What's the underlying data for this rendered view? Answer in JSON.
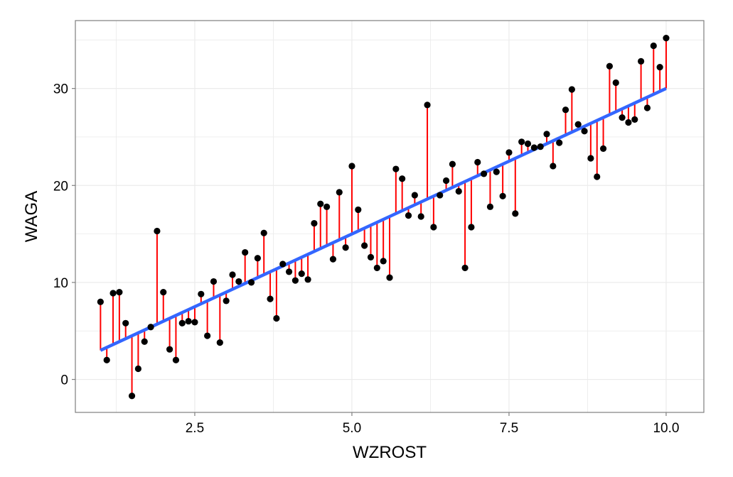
{
  "chart_data": {
    "type": "scatter",
    "xlabel": "WZROST",
    "ylabel": "WAGA",
    "xlim": [
      0.6,
      10.6
    ],
    "ylim": [
      -3.4,
      37.0
    ],
    "x_ticks": [
      2.5,
      5.0,
      7.5,
      10.0
    ],
    "x_tick_labels": [
      "2.5",
      "5.0",
      "7.5",
      "10.0"
    ],
    "y_ticks": [
      0,
      10,
      20,
      30
    ],
    "y_tick_labels": [
      "0",
      "10",
      "20",
      "30"
    ],
    "grid": true,
    "fit_line": {
      "x": [
        1.0,
        10.0
      ],
      "y": [
        3.0,
        30.0
      ]
    },
    "points": [
      {
        "x": 1.0,
        "y": 8.0
      },
      {
        "x": 1.1,
        "y": 2.0
      },
      {
        "x": 1.2,
        "y": 8.9
      },
      {
        "x": 1.3,
        "y": 9.0
      },
      {
        "x": 1.4,
        "y": 5.8
      },
      {
        "x": 1.5,
        "y": -1.7
      },
      {
        "x": 1.6,
        "y": 1.1
      },
      {
        "x": 1.7,
        "y": 3.9
      },
      {
        "x": 1.8,
        "y": 5.4
      },
      {
        "x": 1.9,
        "y": 15.3
      },
      {
        "x": 2.0,
        "y": 9.0
      },
      {
        "x": 2.1,
        "y": 3.1
      },
      {
        "x": 2.2,
        "y": 2.0
      },
      {
        "x": 2.3,
        "y": 5.8
      },
      {
        "x": 2.4,
        "y": 6.0
      },
      {
        "x": 2.5,
        "y": 5.9
      },
      {
        "x": 2.6,
        "y": 8.8
      },
      {
        "x": 2.7,
        "y": 4.5
      },
      {
        "x": 2.8,
        "y": 10.1
      },
      {
        "x": 2.9,
        "y": 3.8
      },
      {
        "x": 3.0,
        "y": 8.1
      },
      {
        "x": 3.1,
        "y": 10.8
      },
      {
        "x": 3.2,
        "y": 10.1
      },
      {
        "x": 3.3,
        "y": 13.1
      },
      {
        "x": 3.4,
        "y": 10.0
      },
      {
        "x": 3.5,
        "y": 12.5
      },
      {
        "x": 3.6,
        "y": 15.1
      },
      {
        "x": 3.7,
        "y": 8.3
      },
      {
        "x": 3.8,
        "y": 6.3
      },
      {
        "x": 3.9,
        "y": 11.9
      },
      {
        "x": 4.0,
        "y": 11.1
      },
      {
        "x": 4.1,
        "y": 10.2
      },
      {
        "x": 4.2,
        "y": 10.9
      },
      {
        "x": 4.3,
        "y": 10.3
      },
      {
        "x": 4.4,
        "y": 16.1
      },
      {
        "x": 4.5,
        "y": 18.1
      },
      {
        "x": 4.6,
        "y": 17.8
      },
      {
        "x": 4.7,
        "y": 12.4
      },
      {
        "x": 4.8,
        "y": 19.3
      },
      {
        "x": 4.9,
        "y": 13.6
      },
      {
        "x": 5.0,
        "y": 22.0
      },
      {
        "x": 5.1,
        "y": 17.5
      },
      {
        "x": 5.2,
        "y": 13.8
      },
      {
        "x": 5.3,
        "y": 12.6
      },
      {
        "x": 5.4,
        "y": 11.5
      },
      {
        "x": 5.5,
        "y": 12.2
      },
      {
        "x": 5.6,
        "y": 10.5
      },
      {
        "x": 5.7,
        "y": 21.7
      },
      {
        "x": 5.8,
        "y": 20.7
      },
      {
        "x": 5.9,
        "y": 16.9
      },
      {
        "x": 6.0,
        "y": 19.0
      },
      {
        "x": 6.1,
        "y": 16.8
      },
      {
        "x": 6.2,
        "y": 28.3
      },
      {
        "x": 6.3,
        "y": 15.7
      },
      {
        "x": 6.4,
        "y": 19.0
      },
      {
        "x": 6.5,
        "y": 20.5
      },
      {
        "x": 6.6,
        "y": 22.2
      },
      {
        "x": 6.7,
        "y": 19.4
      },
      {
        "x": 6.8,
        "y": 11.5
      },
      {
        "x": 6.9,
        "y": 15.7
      },
      {
        "x": 7.0,
        "y": 22.4
      },
      {
        "x": 7.1,
        "y": 21.2
      },
      {
        "x": 7.2,
        "y": 17.8
      },
      {
        "x": 7.3,
        "y": 21.4
      },
      {
        "x": 7.4,
        "y": 18.9
      },
      {
        "x": 7.5,
        "y": 23.4
      },
      {
        "x": 7.6,
        "y": 17.1
      },
      {
        "x": 7.7,
        "y": 24.5
      },
      {
        "x": 7.8,
        "y": 24.3
      },
      {
        "x": 7.9,
        "y": 23.9
      },
      {
        "x": 8.0,
        "y": 24.0
      },
      {
        "x": 8.1,
        "y": 25.3
      },
      {
        "x": 8.2,
        "y": 22.0
      },
      {
        "x": 8.3,
        "y": 24.4
      },
      {
        "x": 8.4,
        "y": 27.8
      },
      {
        "x": 8.5,
        "y": 29.9
      },
      {
        "x": 8.6,
        "y": 26.3
      },
      {
        "x": 8.7,
        "y": 25.6
      },
      {
        "x": 8.8,
        "y": 22.8
      },
      {
        "x": 8.9,
        "y": 20.9
      },
      {
        "x": 9.0,
        "y": 23.8
      },
      {
        "x": 9.1,
        "y": 32.3
      },
      {
        "x": 9.2,
        "y": 30.6
      },
      {
        "x": 9.3,
        "y": 27.0
      },
      {
        "x": 9.4,
        "y": 26.5
      },
      {
        "x": 9.5,
        "y": 26.8
      },
      {
        "x": 9.6,
        "y": 32.8
      },
      {
        "x": 9.7,
        "y": 28.0
      },
      {
        "x": 9.8,
        "y": 34.4
      },
      {
        "x": 9.9,
        "y": 32.2
      },
      {
        "x": 10.0,
        "y": 35.2
      }
    ],
    "colors": {
      "points": "#000000",
      "residuals": "#ff0000",
      "fit_line": "#3366ff",
      "grid": "#ebebeb",
      "panel_border": "#7f7f7f"
    }
  }
}
